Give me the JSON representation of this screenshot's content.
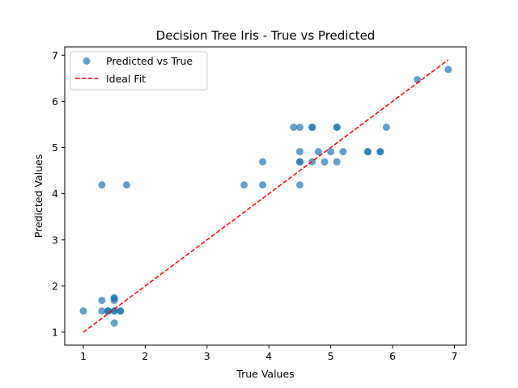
{
  "chart_data": {
    "type": "scatter",
    "title": "Decision Tree Iris - True vs Predicted",
    "xlabel": "True Values",
    "ylabel": "Predicted Values",
    "xlim": [
      0.7,
      7.19
    ],
    "ylim": [
      0.72,
      7.18
    ],
    "xticks": [
      "1",
      "2",
      "3",
      "4",
      "5",
      "6",
      "7"
    ],
    "yticks": [
      "1",
      "2",
      "3",
      "4",
      "5",
      "6",
      "7"
    ],
    "grid": false,
    "legend": {
      "placement": "top-left"
    },
    "colors": {
      "points": "#1f77b4",
      "ideal": "#ff0000"
    },
    "series": [
      {
        "name": "Predicted vs True",
        "kind": "scatter",
        "points": [
          [
            1.0,
            1.46
          ],
          [
            1.3,
            1.46
          ],
          [
            1.3,
            1.69
          ],
          [
            1.3,
            4.19
          ],
          [
            1.4,
            1.46
          ],
          [
            1.4,
            1.46
          ],
          [
            1.4,
            1.46
          ],
          [
            1.5,
            1.46
          ],
          [
            1.5,
            1.46
          ],
          [
            1.5,
            1.2
          ],
          [
            1.5,
            1.69
          ],
          [
            1.5,
            1.74
          ],
          [
            1.5,
            1.74
          ],
          [
            1.6,
            1.46
          ],
          [
            1.6,
            1.46
          ],
          [
            1.7,
            4.19
          ],
          [
            3.6,
            4.19
          ],
          [
            3.9,
            4.19
          ],
          [
            3.9,
            4.69
          ],
          [
            4.4,
            5.44
          ],
          [
            4.5,
            5.44
          ],
          [
            4.5,
            4.91
          ],
          [
            4.5,
            4.69
          ],
          [
            4.5,
            4.69
          ],
          [
            4.5,
            4.19
          ],
          [
            4.7,
            5.44
          ],
          [
            4.7,
            5.44
          ],
          [
            4.7,
            4.69
          ],
          [
            4.8,
            4.91
          ],
          [
            4.9,
            4.69
          ],
          [
            5.0,
            4.91
          ],
          [
            5.1,
            5.44
          ],
          [
            5.1,
            5.44
          ],
          [
            5.1,
            4.69
          ],
          [
            5.2,
            4.91
          ],
          [
            5.6,
            4.91
          ],
          [
            5.6,
            4.91
          ],
          [
            5.8,
            4.91
          ],
          [
            5.8,
            4.91
          ],
          [
            5.9,
            5.44
          ],
          [
            6.4,
            6.47
          ],
          [
            6.9,
            6.69
          ]
        ]
      },
      {
        "name": "Ideal Fit",
        "kind": "line",
        "style": "dashed",
        "points": [
          [
            1.0,
            1.0
          ],
          [
            6.9,
            6.9
          ]
        ]
      }
    ]
  }
}
